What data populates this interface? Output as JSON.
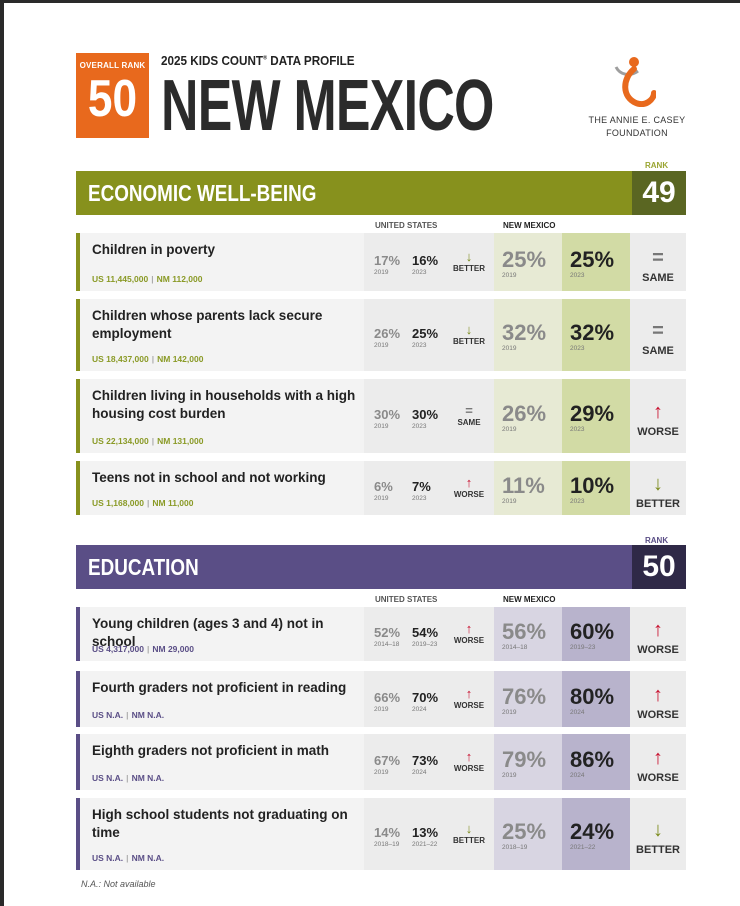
{
  "header": {
    "rank_label": "OVERALL RANK",
    "rank_value": "50",
    "profile_title": "2025 KIDS COUNT",
    "profile_reg": "®",
    "profile_suffix": " DATA PROFILE",
    "state_name": "NEW MEXICO",
    "foundation_line1": "THE ANNIE E. CASEY",
    "foundation_line2": "FOUNDATION",
    "logo_icon": "casey-foundation-logo-icon"
  },
  "colors": {
    "orange": "#e8691d",
    "olive": "#87911d",
    "olive_dark": "#5a6622",
    "purple": "#5a4e86",
    "navy": "#2f2947"
  },
  "economic": {
    "rank_label": "RANK",
    "title": "ECONOMIC WELL-BEING",
    "rank": "49",
    "us_header": "UNITED STATES",
    "nm_header": "NEW MEXICO",
    "rows": [
      {
        "name": "Children in poverty",
        "us_count": "US 11,445,000",
        "nm_count": "NM 112,000",
        "us_old": "17%",
        "us_old_year": "2019",
        "us_new": "16%",
        "us_new_year": "2023",
        "us_arrow": "↓",
        "us_trend": "BETTER",
        "nm_old": "25%",
        "nm_old_year": "2019",
        "nm_new": "25%",
        "nm_new_year": "2023",
        "cmp_arrow": "=",
        "cmp_label": "SAME"
      },
      {
        "name": "Children whose parents lack secure employment",
        "us_count": "US 18,437,000",
        "nm_count": "NM 142,000",
        "us_old": "26%",
        "us_old_year": "2019",
        "us_new": "25%",
        "us_new_year": "2023",
        "us_arrow": "↓",
        "us_trend": "BETTER",
        "nm_old": "32%",
        "nm_old_year": "2019",
        "nm_new": "32%",
        "nm_new_year": "2023",
        "cmp_arrow": "=",
        "cmp_label": "SAME"
      },
      {
        "name": "Children living in households with a high housing cost burden",
        "us_count": "US 22,134,000",
        "nm_count": "NM 131,000",
        "us_old": "30%",
        "us_old_year": "2019",
        "us_new": "30%",
        "us_new_year": "2023",
        "us_arrow": "=",
        "us_trend": "SAME",
        "nm_old": "26%",
        "nm_old_year": "2019",
        "nm_new": "29%",
        "nm_new_year": "2023",
        "cmp_arrow": "↑",
        "cmp_label": "WORSE"
      },
      {
        "name": "Teens not in school and not working",
        "us_count": "US 1,168,000",
        "nm_count": "NM 11,000",
        "us_old": "6%",
        "us_old_year": "2019",
        "us_new": "7%",
        "us_new_year": "2023",
        "us_arrow": "↑",
        "us_trend": "WORSE",
        "nm_old": "11%",
        "nm_old_year": "2019",
        "nm_new": "10%",
        "nm_new_year": "2023",
        "cmp_arrow": "↓",
        "cmp_label": "BETTER"
      }
    ]
  },
  "education": {
    "rank_label": "RANK",
    "title": "EDUCATION",
    "rank": "50",
    "us_header": "UNITED STATES",
    "nm_header": "NEW MEXICO",
    "rows": [
      {
        "name": "Young children (ages 3 and 4) not in school",
        "us_count": "US 4,317,000",
        "nm_count": "NM 29,000",
        "us_old": "52%",
        "us_old_year": "2014–18",
        "us_new": "54%",
        "us_new_year": "2019–23",
        "us_arrow": "↑",
        "us_trend": "WORSE",
        "nm_old": "56%",
        "nm_old_year": "2014–18",
        "nm_new": "60%",
        "nm_new_year": "2019–23",
        "cmp_arrow": "↑",
        "cmp_label": "WORSE"
      },
      {
        "name": "Fourth graders not proficient in reading",
        "us_count": "US N.A.",
        "nm_count": "NM N.A.",
        "us_old": "66%",
        "us_old_year": "2019",
        "us_new": "70%",
        "us_new_year": "2024",
        "us_arrow": "↑",
        "us_trend": "WORSE",
        "nm_old": "76%",
        "nm_old_year": "2019",
        "nm_new": "80%",
        "nm_new_year": "2024",
        "cmp_arrow": "↑",
        "cmp_label": "WORSE"
      },
      {
        "name": "Eighth graders not proficient in math",
        "us_count": "US N.A.",
        "nm_count": "NM N.A.",
        "us_old": "67%",
        "us_old_year": "2019",
        "us_new": "73%",
        "us_new_year": "2024",
        "us_arrow": "↑",
        "us_trend": "WORSE",
        "nm_old": "79%",
        "nm_old_year": "2019",
        "nm_new": "86%",
        "nm_new_year": "2024",
        "cmp_arrow": "↑",
        "cmp_label": "WORSE"
      },
      {
        "name": "High school students not graduating on time",
        "us_count": "US N.A.",
        "nm_count": "NM N.A.",
        "us_old": "14%",
        "us_old_year": "2018–19",
        "us_new": "13%",
        "us_new_year": "2021–22",
        "us_arrow": "↓",
        "us_trend": "BETTER",
        "nm_old": "25%",
        "nm_old_year": "2018–19",
        "nm_new": "24%",
        "nm_new_year": "2021–22",
        "cmp_arrow": "↓",
        "cmp_label": "BETTER"
      }
    ]
  },
  "footnote": "N.A.: Not available"
}
